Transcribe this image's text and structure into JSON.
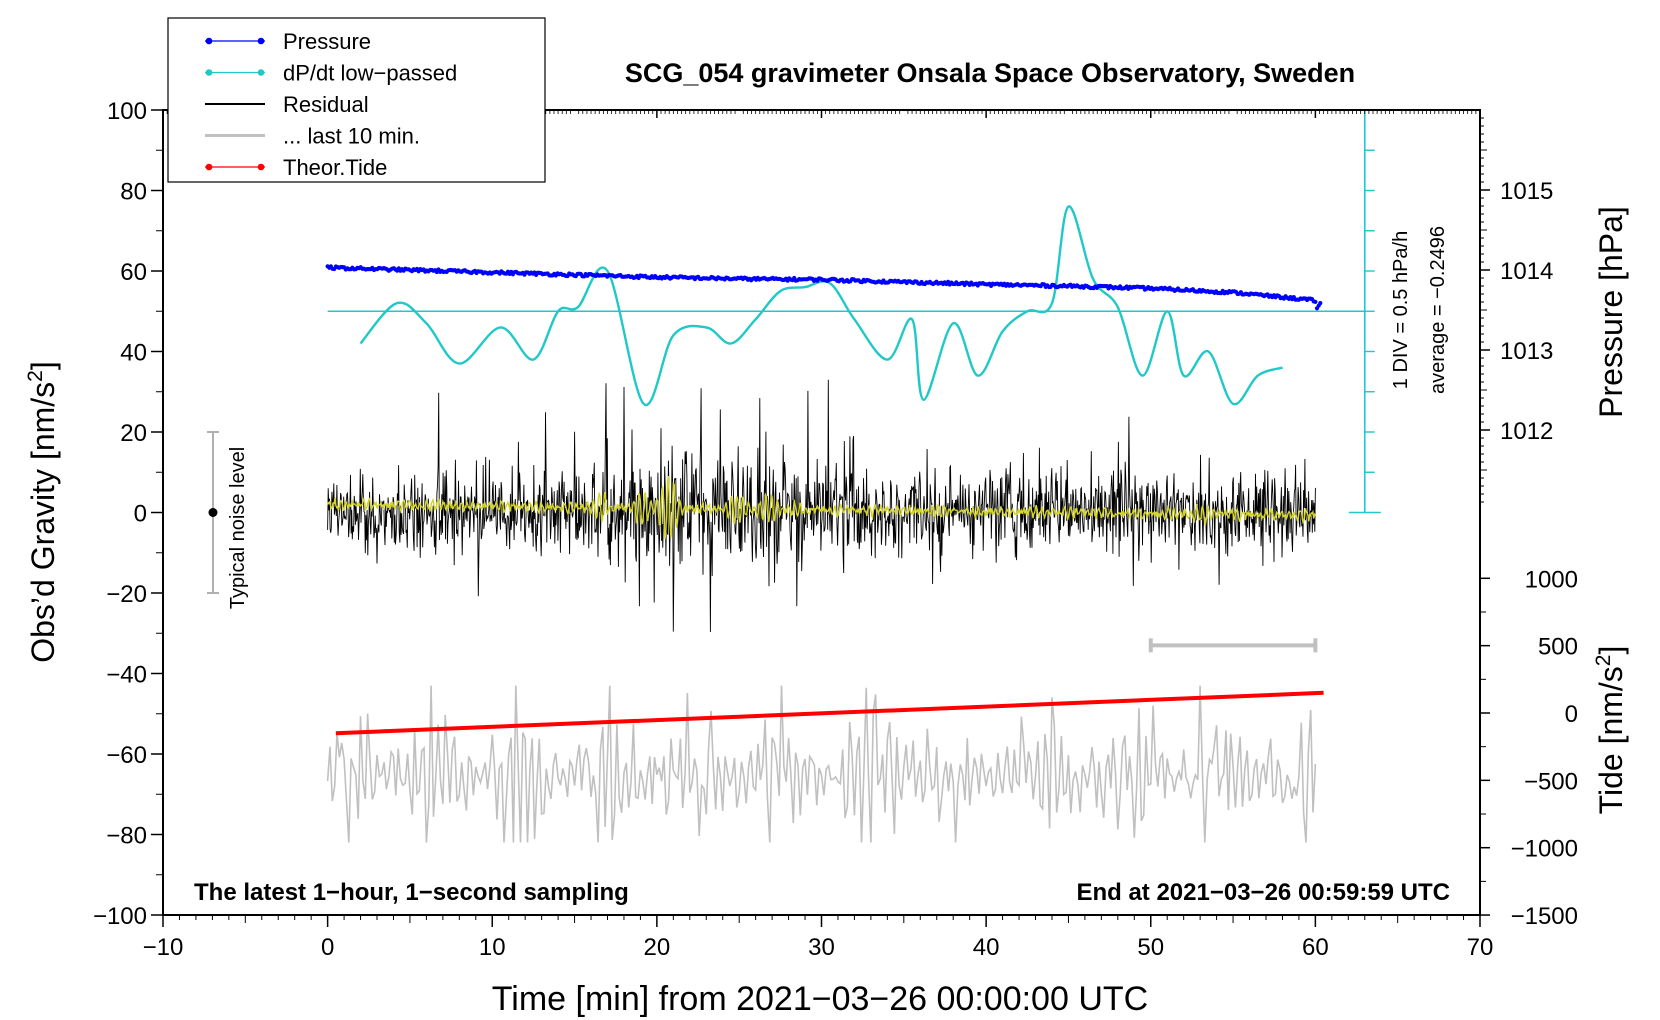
{
  "chart_data": {
    "type": "line",
    "title": "SCG_054 gravimeter Onsala Space Observatory, Sweden",
    "xlabel": "Time [min] from 2021−03−26 00:00:00 UTC",
    "ylabel_left": "Obs’d Gravity [nm/s²]",
    "ylabel_right_pressure": "Pressure [hPa]",
    "ylabel_right_tide": "Tide [nm/s²]",
    "xlim": [
      -10,
      70
    ],
    "ylim_left": [
      -100,
      100
    ],
    "x_ticks": [
      "−10",
      "0",
      "10",
      "20",
      "30",
      "40",
      "50",
      "60",
      "70"
    ],
    "y_left_ticks": [
      "100",
      "80",
      "60",
      "40",
      "20",
      "0",
      "−20",
      "−40",
      "−60",
      "−80",
      "−100"
    ],
    "pressure_ticks": [
      "1015",
      "1014",
      "1013",
      "1012"
    ],
    "tide_ticks": [
      "1000",
      "500",
      "0",
      "−500",
      "−1000",
      "−1500"
    ],
    "legend": [
      {
        "label": "Pressure",
        "color": "#0000ff",
        "marker": true
      },
      {
        "label": "dP/dt low−passed",
        "color": "#20c8c8",
        "marker": true
      },
      {
        "label": "Residual",
        "color": "#000000",
        "marker": false
      },
      {
        "label": "... last 10 min.",
        "color": "#c0c0c0",
        "marker": false
      },
      {
        "label": "Theor.Tide",
        "color": "#ff0000",
        "marker": true
      }
    ],
    "bottom_left_note": "The latest 1−hour, 1−second sampling",
    "bottom_right_note": "End at 2021−03−26 00:59:59 UTC",
    "noise_label": "Typical noise level",
    "noise_range": [
      -20,
      20
    ],
    "dpdt_scale_label": "1 DIV = 0.5 hPa/h",
    "dpdt_average_label": "average = −0.2496",
    "pressure_series": {
      "x": [
        0,
        5,
        10,
        15,
        20,
        25,
        30,
        35,
        40,
        45,
        50,
        55,
        60
      ],
      "values": [
        1014.03,
        1014.0,
        1013.97,
        1013.94,
        1013.91,
        1013.89,
        1013.88,
        1013.85,
        1013.82,
        1013.8,
        1013.77,
        1013.72,
        1013.62
      ]
    },
    "dpdt_series": {
      "x": [
        2,
        4.2,
        6,
        8,
        10.5,
        12.5,
        14,
        15.2,
        17,
        19.2,
        21,
        23,
        24.5,
        26,
        27.5,
        29,
        30.5,
        32,
        34,
        35.5,
        36.2,
        38,
        39.5,
        41,
        42.5,
        44,
        45,
        46.5,
        48,
        49.5,
        51,
        52,
        53.5,
        55,
        56.5,
        58
      ],
      "values": [
        42,
        52,
        47,
        37,
        46,
        38,
        50,
        51,
        60,
        27,
        44,
        46,
        42,
        48,
        55,
        56,
        57,
        48,
        38,
        48,
        28,
        47,
        34,
        45,
        50,
        52,
        76,
        58,
        51,
        34,
        50,
        34,
        40,
        27,
        34,
        36
      ]
    },
    "residual_band": {
      "x_start": 0,
      "x_end": 60,
      "typical_amplitude": 10,
      "peak_max": 33,
      "peak_min": -31
    },
    "tide_series": {
      "x": [
        0.5,
        60.5
      ],
      "values": [
        -150,
        150
      ]
    },
    "last10_series": {
      "x_start": 0,
      "x_end": 60,
      "center": -65,
      "amplitude": 14
    },
    "last10_bar": {
      "x": [
        50,
        60
      ],
      "y": -33
    }
  }
}
